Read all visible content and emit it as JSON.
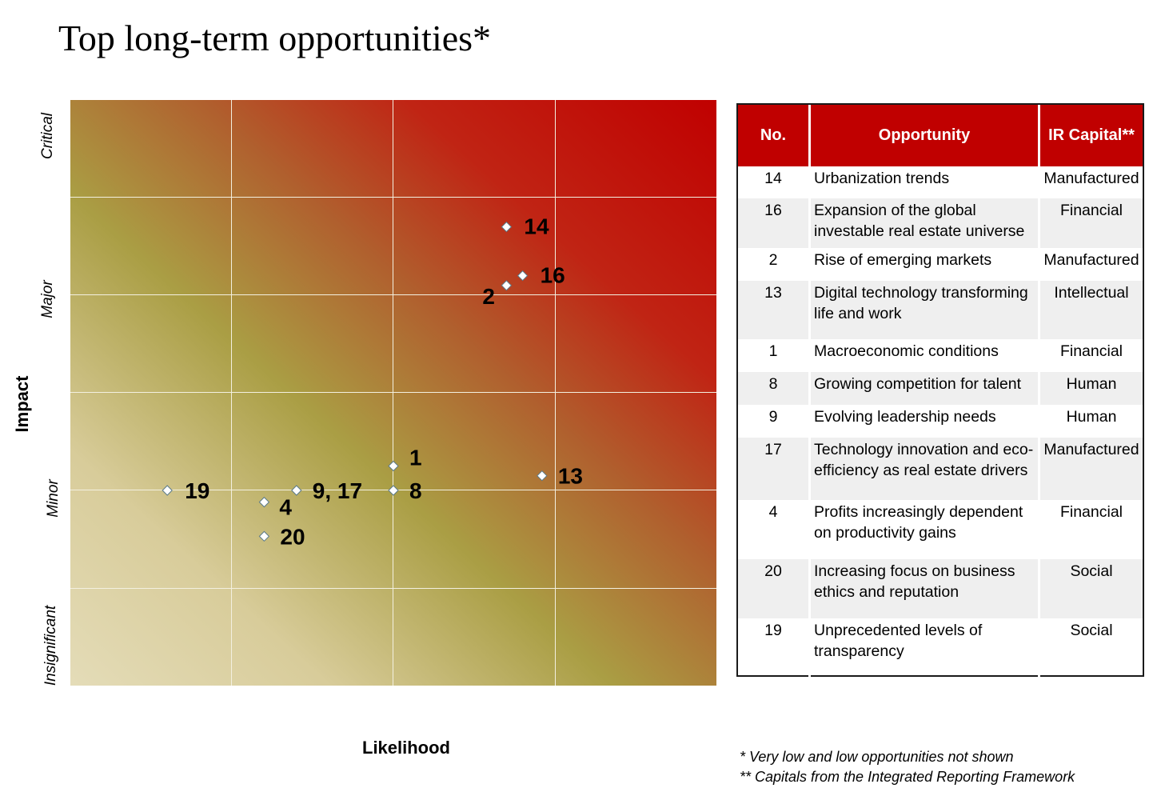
{
  "title": "Top long-term opportunities*",
  "chart_data": {
    "type": "scatter",
    "title": "Top long-term opportunities*",
    "xlabel": "Likelihood",
    "ylabel": "Impact",
    "xlim": [
      0,
      4
    ],
    "ylim": [
      0,
      6
    ],
    "y_tick_labels": [
      {
        "label": "Critical",
        "value": 5.5
      },
      {
        "label": "Major",
        "value": 4
      },
      {
        "label": "Minor",
        "value": 2
      },
      {
        "label": "Insignificant",
        "value": 0.5
      }
    ],
    "points": [
      {
        "label": "14",
        "x": 2.7,
        "y": 4.7
      },
      {
        "label": "16",
        "x": 2.8,
        "y": 4.2
      },
      {
        "label": "2",
        "x": 2.7,
        "y": 4.1
      },
      {
        "label": "1",
        "x": 2.0,
        "y": 2.25
      },
      {
        "label": "8",
        "x": 2.0,
        "y": 2.0
      },
      {
        "label": "13",
        "x": 2.92,
        "y": 2.15
      },
      {
        "label": "19",
        "x": 0.6,
        "y": 2.0
      },
      {
        "label": "9, 17",
        "x": 1.4,
        "y": 2.0
      },
      {
        "label": "4",
        "x": 1.2,
        "y": 1.88
      },
      {
        "label": "20",
        "x": 1.2,
        "y": 1.53
      }
    ]
  },
  "table": {
    "headers": [
      "No.",
      "Opportunity",
      "IR Capital**"
    ],
    "rows": [
      {
        "no": "14",
        "opportunity": "Urbanization trends",
        "capital": "Manufactured"
      },
      {
        "no": "16",
        "opportunity": "Expansion of the global investable real estate universe",
        "capital": "Financial"
      },
      {
        "no": "2",
        "opportunity": "Rise of emerging markets",
        "capital": "Manufactured"
      },
      {
        "no": "13",
        "opportunity": "Digital technology transforming life and work",
        "capital": "Intellectual"
      },
      {
        "no": "1",
        "opportunity": "Macroeconomic conditions",
        "capital": "Financial"
      },
      {
        "no": "8",
        "opportunity": "Growing competition for talent",
        "capital": "Human"
      },
      {
        "no": "9",
        "opportunity": "Evolving leadership needs",
        "capital": "Human"
      },
      {
        "no": "17",
        "opportunity": "Technology innovation and eco-efficiency as real estate drivers",
        "capital": "Manufactured"
      },
      {
        "no": "4",
        "opportunity": "Profits increasingly dependent on productivity gains",
        "capital": "Financial"
      },
      {
        "no": "20",
        "opportunity": "Increasing focus on business ethics and reputation",
        "capital": "Social"
      },
      {
        "no": "19",
        "opportunity": "Unprecedented levels of transparency",
        "capital": "Social"
      }
    ]
  },
  "footnotes": [
    "* Very low and low opportunities not shown",
    "** Capitals from the Integrated Reporting Framework"
  ],
  "colors": {
    "header_red": "#c00000",
    "marker_fill": "#ffffff",
    "marker_stroke": "#5a7a8a"
  }
}
